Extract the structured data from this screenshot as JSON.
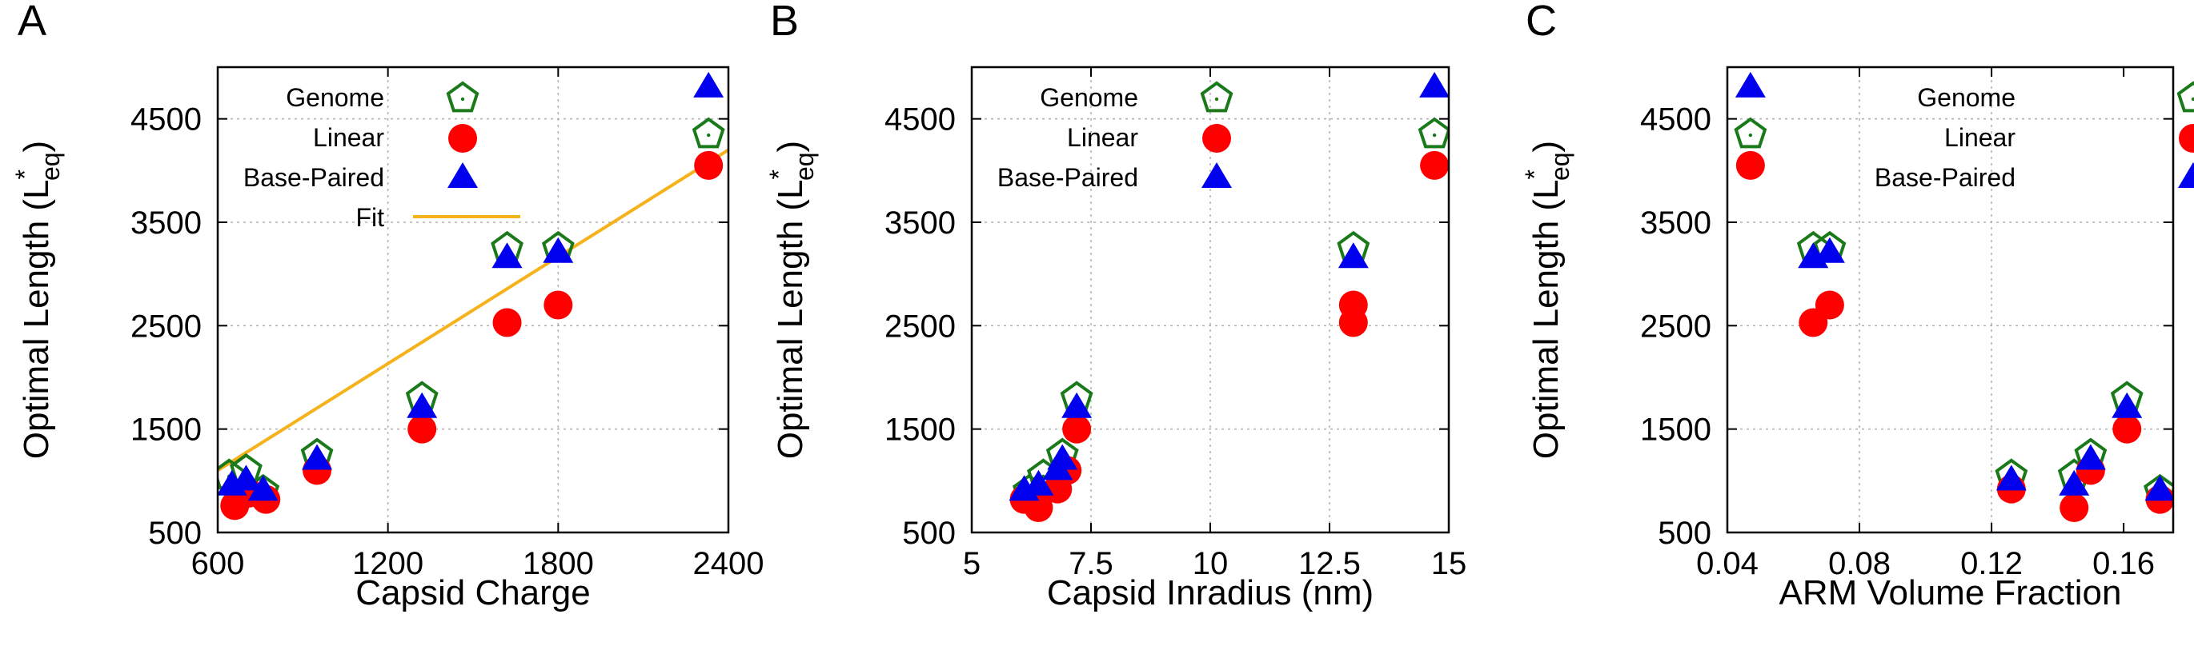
{
  "colors": {
    "genome": "#1a7a1a",
    "linear": "#ff0000",
    "basepaired": "#0000ee",
    "fit": "#f5b21b",
    "grid": "#b0b0b0",
    "axis": "#000000"
  },
  "legend_labels": {
    "genome": "Genome",
    "linear": "Linear",
    "basepaired": "Base-Paired",
    "fit": "Fit"
  },
  "chart_data": [
    {
      "panel": "A",
      "type": "scatter",
      "xlabel": "Capsid Charge",
      "ylabel": "Optimal Length (L*eq)",
      "xlim": [
        600,
        2400
      ],
      "ylim": [
        500,
        5000
      ],
      "xticks": [
        600,
        1200,
        1800,
        2400
      ],
      "yticks": [
        500,
        1500,
        2500,
        3500,
        4500
      ],
      "grid": true,
      "legend": "top-left",
      "legend_entries": [
        "genome",
        "linear",
        "basepaired",
        "fit"
      ],
      "series": [
        {
          "name": "Genome",
          "key": "genome",
          "points": [
            [
              640,
              1050
            ],
            [
              700,
              1100
            ],
            [
              760,
              900
            ],
            [
              950,
              1250
            ],
            [
              1320,
              1800
            ],
            [
              1620,
              3250
            ],
            [
              1800,
              3250
            ],
            [
              2330,
              4350
            ]
          ]
        },
        {
          "name": "Linear",
          "key": "linear",
          "points": [
            [
              660,
              760
            ],
            [
              710,
              880
            ],
            [
              770,
              820
            ],
            [
              950,
              1100
            ],
            [
              1320,
              1500
            ],
            [
              1620,
              2530
            ],
            [
              1800,
              2700
            ],
            [
              2330,
              4050
            ]
          ]
        },
        {
          "name": "Base-Paired",
          "key": "basepaired",
          "points": [
            [
              650,
              950
            ],
            [
              700,
              1000
            ],
            [
              760,
              900
            ],
            [
              950,
              1200
            ],
            [
              1320,
              1700
            ],
            [
              1620,
              3150
            ],
            [
              1800,
              3200
            ],
            [
              2330,
              4800
            ]
          ]
        }
      ],
      "fit_line": [
        [
          600,
          1100
        ],
        [
          2400,
          4200
        ]
      ]
    },
    {
      "panel": "B",
      "type": "scatter",
      "xlabel": "Capsid Inradius (nm)",
      "ylabel": "Optimal Length (L*eq)",
      "xlim": [
        5,
        15
      ],
      "ylim": [
        500,
        5000
      ],
      "xticks": [
        5,
        7.5,
        10,
        12.5,
        15
      ],
      "yticks": [
        500,
        1500,
        2500,
        3500,
        4500
      ],
      "grid": true,
      "legend": "top-left",
      "legend_entries": [
        "genome",
        "linear",
        "basepaired"
      ],
      "series": [
        {
          "name": "Genome",
          "key": "genome",
          "points": [
            [
              6.2,
              900
            ],
            [
              6.5,
              1050
            ],
            [
              6.9,
              1250
            ],
            [
              7.2,
              1800
            ],
            [
              13.0,
              3250
            ],
            [
              14.7,
              4350
            ]
          ]
        },
        {
          "name": "Linear",
          "key": "linear",
          "points": [
            [
              6.1,
              820
            ],
            [
              6.4,
              740
            ],
            [
              6.8,
              920
            ],
            [
              7.0,
              1100
            ],
            [
              7.2,
              1500
            ],
            [
              13.0,
              2530
            ],
            [
              13.0,
              2700
            ],
            [
              14.7,
              4050
            ]
          ]
        },
        {
          "name": "Base-Paired",
          "key": "basepaired",
          "points": [
            [
              6.1,
              900
            ],
            [
              6.4,
              950
            ],
            [
              6.8,
              1100
            ],
            [
              6.9,
              1200
            ],
            [
              7.2,
              1700
            ],
            [
              13.0,
              3150
            ],
            [
              14.7,
              4800
            ]
          ]
        }
      ]
    },
    {
      "panel": "C",
      "type": "scatter",
      "xlabel": "ARM Volume Fraction",
      "ylabel": "Optimal Length (L*eq)",
      "xlim": [
        0.04,
        0.175
      ],
      "ylim": [
        500,
        5000
      ],
      "xticks": [
        0.04,
        0.08,
        0.12,
        0.16
      ],
      "yticks": [
        500,
        1500,
        2500,
        3500,
        4500
      ],
      "grid": true,
      "legend": "top-right",
      "legend_entries": [
        "genome",
        "linear",
        "basepaired"
      ],
      "series": [
        {
          "name": "Genome",
          "key": "genome",
          "points": [
            [
              0.047,
              4350
            ],
            [
              0.066,
              3250
            ],
            [
              0.071,
              3250
            ],
            [
              0.126,
              1050
            ],
            [
              0.145,
              1050
            ],
            [
              0.15,
              1250
            ],
            [
              0.161,
              1800
            ],
            [
              0.171,
              900
            ]
          ]
        },
        {
          "name": "Linear",
          "key": "linear",
          "points": [
            [
              0.047,
              4050
            ],
            [
              0.066,
              2530
            ],
            [
              0.071,
              2700
            ],
            [
              0.126,
              920
            ],
            [
              0.145,
              740
            ],
            [
              0.15,
              1100
            ],
            [
              0.161,
              1500
            ],
            [
              0.171,
              820
            ]
          ]
        },
        {
          "name": "Base-Paired",
          "key": "basepaired",
          "points": [
            [
              0.047,
              4800
            ],
            [
              0.066,
              3150
            ],
            [
              0.071,
              3200
            ],
            [
              0.126,
              1000
            ],
            [
              0.145,
              950
            ],
            [
              0.15,
              1200
            ],
            [
              0.161,
              1700
            ],
            [
              0.171,
              900
            ]
          ]
        }
      ]
    }
  ]
}
